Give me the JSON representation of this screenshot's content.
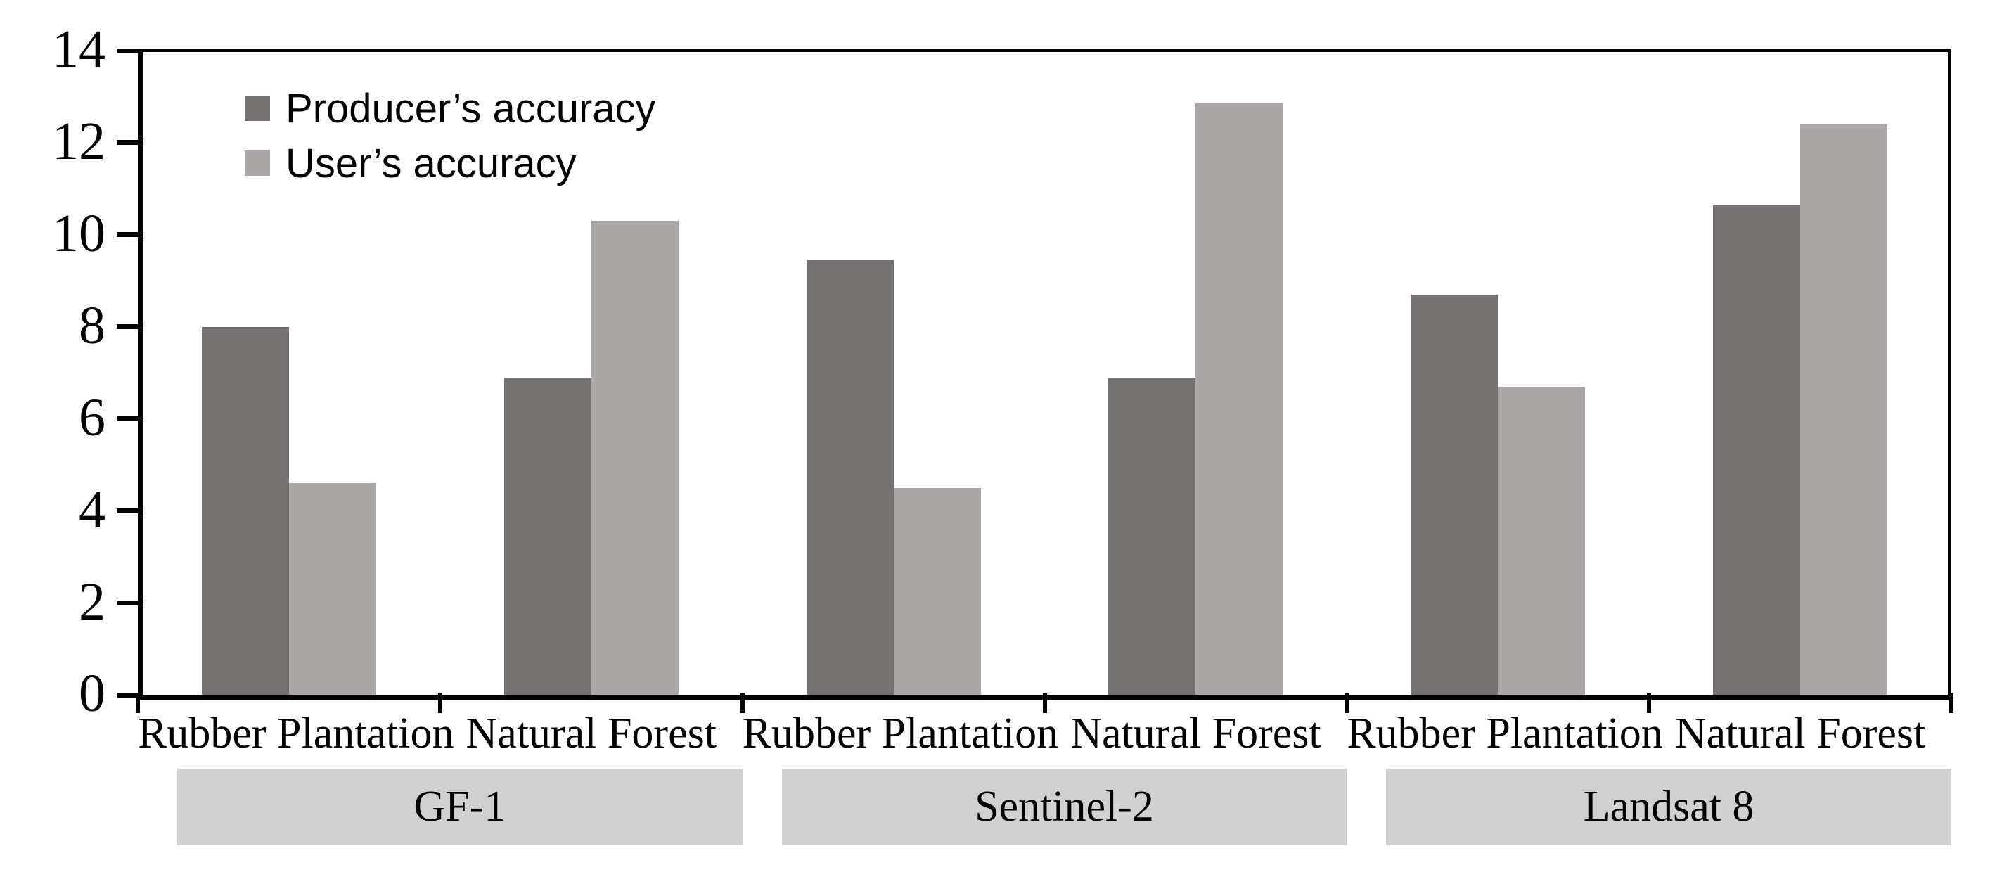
{
  "chart_data": {
    "type": "bar",
    "title": "",
    "xlabel": "",
    "ylabel": "",
    "ylim": [
      0,
      14
    ],
    "yticks": [
      0,
      2,
      4,
      6,
      8,
      10,
      12,
      14
    ],
    "ytick_labels": [
      "0",
      "2",
      "4",
      "6",
      "8",
      "10",
      "12",
      "14"
    ],
    "grid": false,
    "legend_position": "top-left-inside",
    "categories": [
      "Rubber Plantation",
      "Natural Forest",
      "Rubber Plantation",
      "Natural Forest",
      "Rubber Plantation",
      "Natural Forest"
    ],
    "group_labels": [
      "GF-1",
      "Sentinel-2",
      "Landsat 8"
    ],
    "series": [
      {
        "name": "Producer’s accuracy",
        "color": "#757171",
        "values": [
          8.0,
          6.9,
          9.45,
          6.9,
          8.7,
          10.65
        ]
      },
      {
        "name": "User’s accuracy",
        "color": "#ABA7A7",
        "values": [
          4.6,
          10.3,
          4.5,
          12.85,
          6.7,
          12.4
        ]
      }
    ],
    "colors": {
      "axis": "#000000",
      "background": "#ffffff",
      "group_band": "#D2D1D1",
      "text": "#000000"
    }
  }
}
